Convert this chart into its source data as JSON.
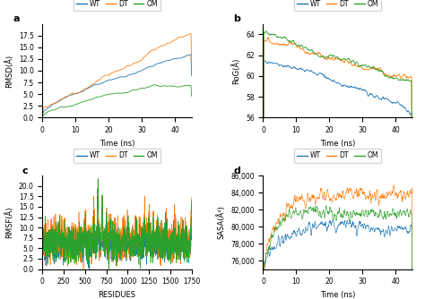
{
  "colors": {
    "WT": "#1f77b4",
    "DT": "#ff7f0e",
    "OM": "#2ca02c"
  },
  "legend_labels": [
    "WT",
    "DT",
    "OM"
  ],
  "panel_a": {
    "title": "a",
    "xlabel": "Time (ns)",
    "ylabel": "RMSD(Å)",
    "xlim": [
      0,
      45
    ],
    "ylim": [
      0.0,
      20.0
    ],
    "yticks": [
      0.0,
      2.5,
      5.0,
      7.5,
      10.0,
      12.5,
      15.0,
      17.5
    ],
    "xticks": [
      0,
      10,
      20,
      30,
      40
    ]
  },
  "panel_b": {
    "title": "b",
    "xlabel": "Time (ns)",
    "ylabel": "RoG(Å)",
    "xlim": [
      0,
      45
    ],
    "ylim": [
      56,
      65
    ],
    "yticks": [
      56,
      58,
      60,
      62,
      64
    ],
    "xticks": [
      0,
      10,
      20,
      30,
      40
    ]
  },
  "panel_c": {
    "title": "c",
    "xlabel": "RESIDUES",
    "ylabel": "RMSF(Å)",
    "xlim": [
      0,
      1750
    ],
    "ylim": [
      0.0,
      22.5
    ],
    "yticks": [
      0.0,
      2.5,
      5.0,
      7.5,
      10.0,
      12.5,
      15.0,
      17.5,
      20.0
    ],
    "xticks": [
      0,
      250,
      500,
      750,
      1000,
      1250,
      1500,
      1750
    ]
  },
  "panel_d": {
    "title": "d",
    "xlabel": "Time (ns)",
    "ylabel": "SASA(Å²)",
    "xlim": [
      0,
      45
    ],
    "ylim": [
      75000,
      86000
    ],
    "yticks": [
      76000,
      78000,
      80000,
      82000,
      84000,
      86000
    ],
    "xticks": [
      0,
      10,
      20,
      30,
      40
    ]
  },
  "seed": 42,
  "fig_width": 4.74,
  "fig_height": 3.34,
  "dpi": 100,
  "line_width": 0.6,
  "legend_fontsize": 5.5,
  "label_fontsize": 6,
  "tick_fontsize": 5.5,
  "panel_label_fontsize": 8
}
